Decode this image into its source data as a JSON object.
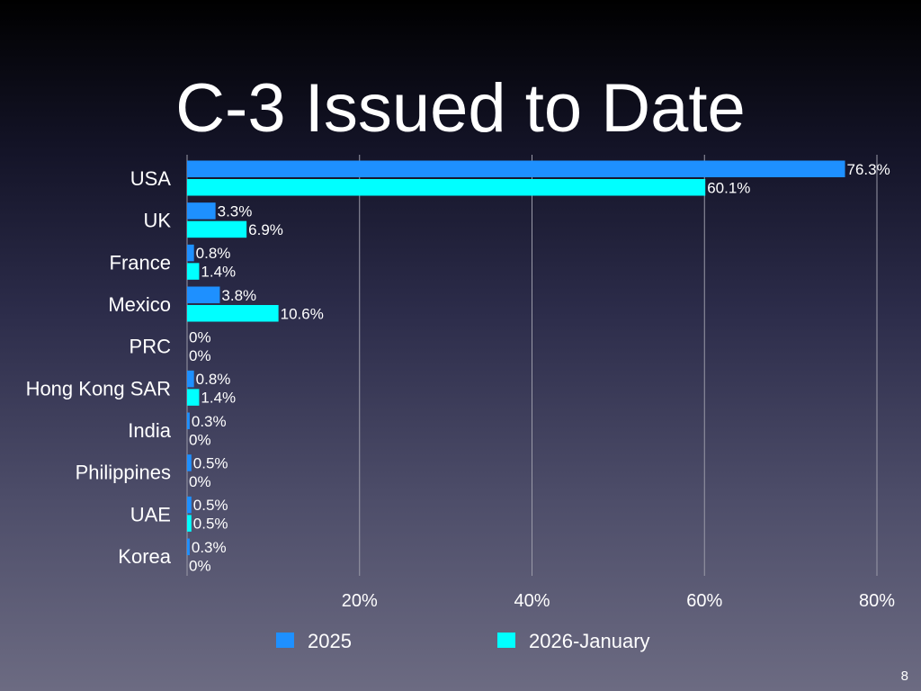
{
  "slide": {
    "title": "C-3 Issued to Date",
    "page_number": "8"
  },
  "colors": {
    "series_2025": "#1e90ff",
    "series_2026": "#00ffff",
    "grid": "#9a9aa8"
  },
  "chart_data": {
    "type": "bar",
    "orientation": "horizontal",
    "categories": [
      "USA",
      "UK",
      "France",
      "Mexico",
      "PRC",
      "Hong Kong SAR",
      "India",
      "Philippines",
      "UAE",
      "Korea"
    ],
    "series": [
      {
        "name": "2025",
        "values": [
          76.3,
          3.3,
          0.8,
          3.8,
          0,
          0.8,
          0.3,
          0.5,
          0.5,
          0.3
        ],
        "labels": [
          "76.3%",
          "3.3%",
          "0.8%",
          "3.8%",
          "0%",
          "0.8%",
          "0.3%",
          "0.5%",
          "0.5%",
          "0.3%"
        ],
        "color": "#1e90ff"
      },
      {
        "name": "2026-January",
        "values": [
          60.1,
          6.9,
          1.4,
          10.6,
          0,
          1.4,
          0,
          0,
          0.5,
          0
        ],
        "labels": [
          "60.1%",
          "6.9%",
          "1.4%",
          "10.6%",
          "0%",
          "1.4%",
          "0%",
          "0%",
          "0.5%",
          "0%"
        ],
        "color": "#00ffff"
      }
    ],
    "xlim": [
      0,
      80
    ],
    "x_ticks": [
      20,
      40,
      60,
      80
    ],
    "x_tick_labels": [
      "20%",
      "40%",
      "60%",
      "80%"
    ],
    "grid": "vertical",
    "legend_position": "bottom"
  }
}
